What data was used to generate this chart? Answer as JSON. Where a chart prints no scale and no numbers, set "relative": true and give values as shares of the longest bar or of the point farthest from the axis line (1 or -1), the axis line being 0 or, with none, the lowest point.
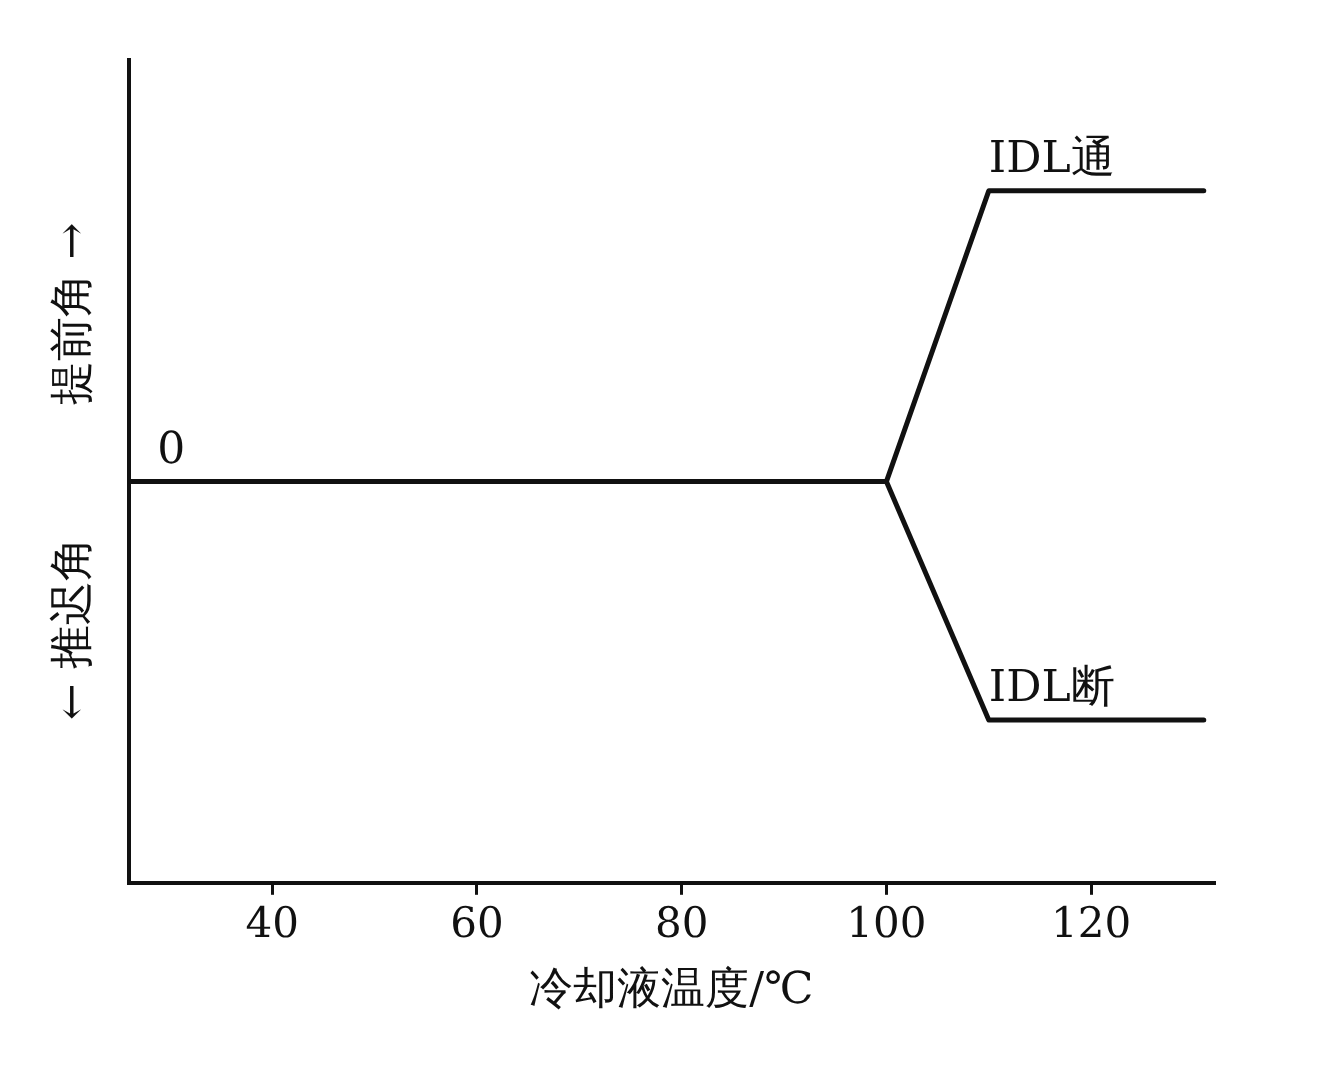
{
  "chart_data": {
    "type": "line",
    "relative": true,
    "xlabel": "冷却液温度/℃",
    "ylabel": "← 推迟角　　　提前角 →",
    "xlim": [
      26,
      132
    ],
    "xticks": [
      40,
      60,
      80,
      100,
      120
    ],
    "grid": false,
    "legend": false,
    "marker": "none",
    "line_style": "solid",
    "annotations": [
      {
        "text": "0",
        "x": 28,
        "y": 0
      }
    ],
    "series": [
      {
        "name": "IDL通",
        "color": "#111111",
        "x": [
          26,
          100,
          110,
          131
        ],
        "values": [
          0,
          0,
          1,
          1
        ]
      },
      {
        "name": "IDL断",
        "color": "#111111",
        "x": [
          26,
          100,
          110,
          131
        ],
        "values": [
          0,
          0,
          -0.82,
          -0.82
        ]
      }
    ]
  }
}
